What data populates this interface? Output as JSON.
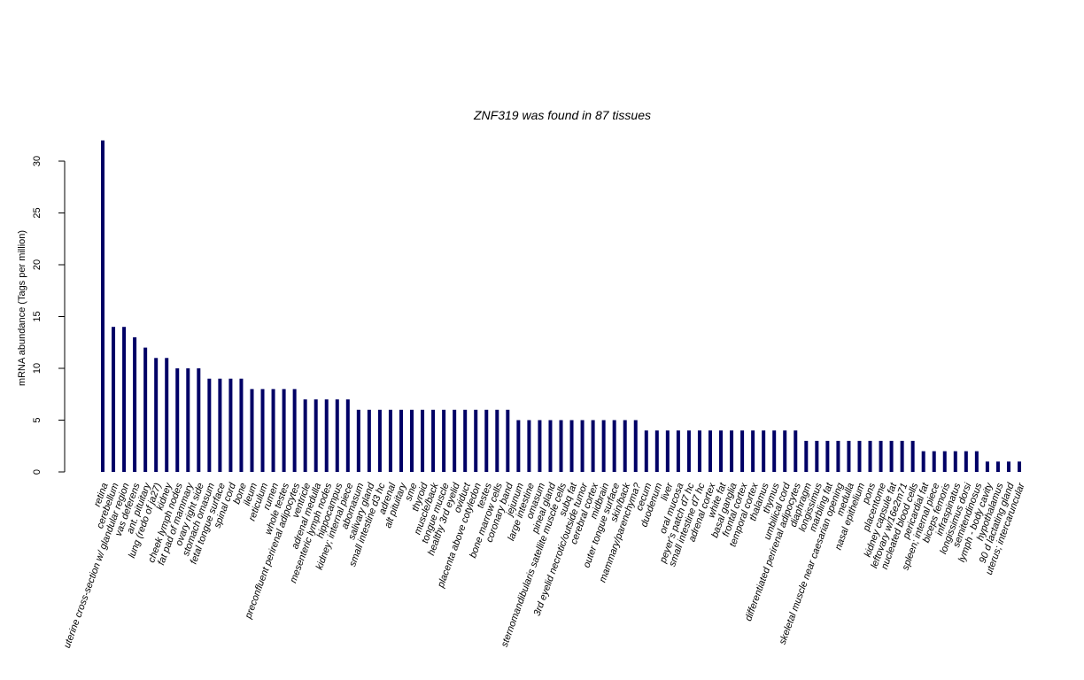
{
  "chart_data": {
    "type": "bar",
    "title": "ZNF319  was found in  87  tissues",
    "xlabel": "",
    "ylabel": "mRNA abundance (Tags per million)",
    "ylim": [
      0,
      32
    ],
    "yticks": [
      0,
      5,
      10,
      15,
      20,
      25,
      30
    ],
    "bar_color": "#000066",
    "grid": false,
    "categories": [
      "retina",
      "cerebellum",
      "uterine cross-section w/ glandular region",
      "vas deferens",
      "ant. pituitary",
      "lung (redo of ja27)",
      "kidney",
      "cheek lymph nodes",
      "fat pad of mammary",
      "ovary right side",
      "stomach omasum",
      "fetal tongue surface",
      "spinal cord",
      "bone",
      "ileum",
      "reticulum",
      "rumen",
      "whole testes",
      "preconfluent perirenal adipocytes",
      "ventricle",
      "adrenal medulla",
      "mesenteric lymph nodes",
      "hippocampus",
      "kidney; internal piece",
      "abomasum",
      "salivary gland",
      "small intestine d3 hc",
      "adrenal",
      "alt pituitary",
      "sme",
      "thyroid",
      "muscle/back",
      "tongue muscle",
      "healthy 3rd eyelid",
      "oviduct",
      "placenta above cotyledon",
      "testes",
      "bone marrow cells",
      "coronary band",
      "jejunum",
      "large intestine",
      "omasum",
      "pineal gland",
      "sternomandibularis satellite muscle cells",
      "subq fat",
      "3rd eyelid necrotic/outside tumor",
      "cerebral cortex",
      "midbrain",
      "outer tongue surface",
      "skin/back",
      "mammary/parenchyma?",
      "cecum",
      "duodenum",
      "liver",
      "oral mucosa",
      "peyer's patch d7 hc",
      "small intestine d7 hc",
      "adrenal cortex",
      "white fat",
      "basal ganglia",
      "frontal cortex",
      "temporal cortex",
      "thalamus",
      "thymus",
      "umbilical cord",
      "differentiated perirenal adipocytes",
      "diaphragm",
      "longissimus",
      "marbling fat",
      "skeletal muscle near caesarian opening",
      "medulla",
      "nasal epithelium",
      "pons",
      "placentome",
      "kidney capsule fat",
      "leftovary w/16e2m71",
      "nucleated blood cells",
      "pericardial fat",
      "spleen; internal piece",
      "biceps femoris",
      "infraspinatus",
      "longissimus dorsi",
      "semitendinosus",
      "lymph - body cavity",
      "hypothalamus",
      "90 d lactating gland",
      "uterus; intercaruncular"
    ],
    "values": [
      32,
      14,
      14,
      13,
      12,
      11,
      11,
      10,
      10,
      10,
      9,
      9,
      9,
      9,
      8,
      8,
      8,
      8,
      8,
      7,
      7,
      7,
      7,
      7,
      6,
      6,
      6,
      6,
      6,
      6,
      6,
      6,
      6,
      6,
      6,
      6,
      6,
      6,
      6,
      5,
      5,
      5,
      5,
      5,
      5,
      5,
      5,
      5,
      5,
      5,
      5,
      4,
      4,
      4,
      4,
      4,
      4,
      4,
      4,
      4,
      4,
      4,
      4,
      4,
      4,
      4,
      3,
      3,
      3,
      3,
      3,
      3,
      3,
      3,
      3,
      3,
      3,
      2,
      2,
      2,
      2,
      2,
      2,
      1,
      1,
      1,
      1
    ]
  }
}
